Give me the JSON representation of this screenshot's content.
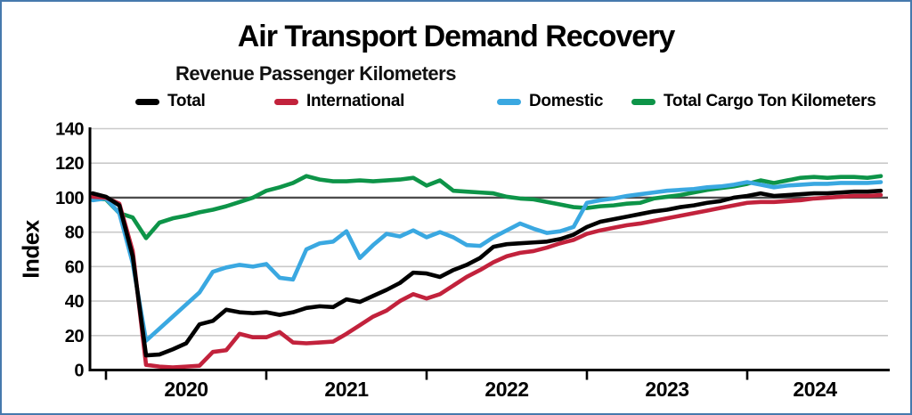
{
  "figure": {
    "border_color": "#4679ad",
    "background": "#ffffff"
  },
  "chart_data": {
    "type": "line",
    "title": "Air Transport Demand Recovery",
    "subtitle": "Revenue Passenger Kilometers",
    "ylabel": "Index",
    "ylim": [
      0,
      140
    ],
    "yticks": [
      0,
      20,
      40,
      60,
      80,
      100,
      120,
      140
    ],
    "reference_line": 100,
    "grid": true,
    "legend_position": "top",
    "x_axis": {
      "unit": "month",
      "start": "2019-12",
      "end": "2024-11",
      "year_tick_labels": [
        "2020",
        "2021",
        "2022",
        "2023",
        "2024"
      ]
    },
    "colors": {
      "grid": "#c9c9c9",
      "reference_line": "#4d4d4d",
      "axis": "#000000"
    },
    "series": [
      {
        "name": "Total Cargo Ton Kilometers",
        "color": "#0d9448",
        "values": [
          99.5,
          99,
          91,
          88.5,
          76.5,
          85.5,
          88,
          89.5,
          91.5,
          93,
          95,
          97.5,
          100,
          104,
          106,
          108.5,
          112.5,
          110.5,
          109.5,
          109.5,
          110,
          109.5,
          110,
          110.5,
          111.5,
          107,
          110,
          104,
          103.5,
          103,
          102.5,
          100.5,
          99.5,
          99,
          97.5,
          96,
          94.5,
          94,
          95,
          95.5,
          96.5,
          97,
          99.5,
          100.5,
          101.5,
          103,
          104.5,
          105.5,
          106.5,
          108,
          110,
          108.5,
          110,
          111.5,
          112,
          111.5,
          112,
          112,
          111.5,
          112.5
        ]
      },
      {
        "name": "Domestic",
        "color": "#3aa8e1",
        "values": [
          98.5,
          99.5,
          91,
          62,
          17,
          24,
          31,
          38,
          45,
          57,
          59.5,
          61,
          60,
          61.5,
          53.5,
          52.5,
          70,
          73.5,
          74.5,
          80.5,
          65,
          72.5,
          79,
          77.5,
          81,
          77,
          80,
          77,
          72.5,
          72,
          77,
          81,
          85,
          82,
          79.5,
          80.5,
          83,
          97,
          98.5,
          99.5,
          101,
          102,
          103,
          104,
          104.5,
          105,
          106,
          106.5,
          107.5,
          109,
          107.5,
          106,
          107,
          107.5,
          108,
          108,
          108.5,
          108.5,
          108.5,
          109
        ]
      },
      {
        "name": "International",
        "color": "#c2223c",
        "values": [
          100.5,
          100,
          96.5,
          69,
          3,
          2,
          1.5,
          2,
          2.5,
          10.5,
          11.5,
          21,
          19,
          19,
          22,
          16,
          15.5,
          16,
          16.5,
          21,
          26,
          31,
          34.5,
          40,
          44,
          41.5,
          44,
          49,
          54,
          58,
          62.5,
          66,
          68,
          69,
          71,
          73.5,
          75.5,
          79,
          81,
          82.5,
          84,
          85,
          86.5,
          88,
          89.5,
          91,
          92.5,
          94,
          95.5,
          97,
          97.5,
          97.5,
          98,
          98.5,
          99.5,
          100,
          100.5,
          101,
          101,
          101.5
        ]
      },
      {
        "name": "Total",
        "color": "#000000",
        "values": [
          102.5,
          100.5,
          95.5,
          66,
          8.5,
          9,
          12,
          15.5,
          26.5,
          28.5,
          35,
          33.5,
          33,
          33.5,
          32,
          33.5,
          36,
          37,
          36.5,
          41,
          39.5,
          43,
          46.5,
          50.5,
          56.5,
          56,
          54,
          58,
          61,
          65,
          71.5,
          73,
          73.5,
          74,
          74.5,
          76,
          78.5,
          83,
          86,
          87.5,
          89,
          90.5,
          92,
          93,
          94.5,
          95.5,
          97,
          98,
          100,
          101,
          102.5,
          101,
          101.5,
          102,
          102.5,
          102.5,
          103,
          103.5,
          103.5,
          104
        ]
      }
    ],
    "legend_order": [
      "Total",
      "International",
      "Domestic",
      "Total Cargo Ton Kilometers"
    ]
  }
}
